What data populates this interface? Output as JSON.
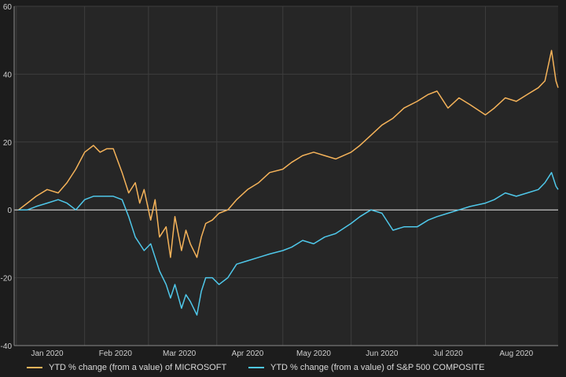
{
  "chart_data": {
    "type": "line",
    "title": "",
    "xlabel": "",
    "ylabel": "",
    "x_range": [
      "2019-12-31",
      "2020-09-03"
    ],
    "ylim": [
      -40,
      60
    ],
    "y_ticks": [
      "-40",
      "-20",
      "0",
      "20",
      "40",
      "60"
    ],
    "x_ticks": [
      {
        "label": "Jan 2020",
        "date": "2020-01-15"
      },
      {
        "label": "Feb 2020",
        "date": "2020-02-15"
      },
      {
        "label": "Mar 2020",
        "date": "2020-03-15"
      },
      {
        "label": "Apr 2020",
        "date": "2020-04-15"
      },
      {
        "label": "May 2020",
        "date": "2020-05-15"
      },
      {
        "label": "Jun 2020",
        "date": "2020-06-15"
      },
      {
        "label": "Jul 2020",
        "date": "2020-07-15"
      },
      {
        "label": "Aug 2020",
        "date": "2020-08-15"
      }
    ],
    "grid": true,
    "zero_line": true,
    "legend_position": "bottom",
    "background_color": "#262626",
    "series": [
      {
        "name": "YTD % change (from a value) of MICROSOFT",
        "color": "#f5b35a",
        "x": [
          "2020-01-02",
          "2020-01-06",
          "2020-01-10",
          "2020-01-15",
          "2020-01-20",
          "2020-01-24",
          "2020-01-28",
          "2020-02-01",
          "2020-02-05",
          "2020-02-08",
          "2020-02-11",
          "2020-02-14",
          "2020-02-18",
          "2020-02-21",
          "2020-02-24",
          "2020-02-26",
          "2020-02-28",
          "2020-03-02",
          "2020-03-04",
          "2020-03-06",
          "2020-03-09",
          "2020-03-11",
          "2020-03-13",
          "2020-03-16",
          "2020-03-18",
          "2020-03-20",
          "2020-03-23",
          "2020-03-25",
          "2020-03-27",
          "2020-03-30",
          "2020-04-02",
          "2020-04-06",
          "2020-04-10",
          "2020-04-15",
          "2020-04-20",
          "2020-04-25",
          "2020-05-01",
          "2020-05-05",
          "2020-05-10",
          "2020-05-15",
          "2020-05-20",
          "2020-05-25",
          "2020-06-01",
          "2020-06-05",
          "2020-06-10",
          "2020-06-15",
          "2020-06-20",
          "2020-06-25",
          "2020-07-01",
          "2020-07-06",
          "2020-07-10",
          "2020-07-15",
          "2020-07-20",
          "2020-07-25",
          "2020-08-01",
          "2020-08-05",
          "2020-08-10",
          "2020-08-15",
          "2020-08-20",
          "2020-08-25",
          "2020-08-28",
          "2020-08-31",
          "2020-09-02",
          "2020-09-03"
        ],
        "values": [
          0,
          2,
          4,
          6,
          5,
          8,
          12,
          17,
          19,
          17,
          18,
          18,
          11,
          5,
          8,
          2,
          6,
          -3,
          3,
          -8,
          -5,
          -14,
          -2,
          -12,
          -6,
          -10,
          -14,
          -8,
          -4,
          -3,
          -1,
          0,
          3,
          6,
          8,
          11,
          12,
          14,
          16,
          17,
          16,
          15,
          17,
          19,
          22,
          25,
          27,
          30,
          32,
          34,
          35,
          30,
          33,
          31,
          28,
          30,
          33,
          32,
          34,
          36,
          38,
          47,
          38,
          36
        ]
      },
      {
        "name": "YTD % change (from a value) of S&P 500 COMPOSITE",
        "color": "#4fc8ea",
        "x": [
          "2020-01-02",
          "2020-01-06",
          "2020-01-10",
          "2020-01-15",
          "2020-01-20",
          "2020-01-24",
          "2020-01-28",
          "2020-02-01",
          "2020-02-05",
          "2020-02-08",
          "2020-02-11",
          "2020-02-14",
          "2020-02-18",
          "2020-02-21",
          "2020-02-24",
          "2020-02-26",
          "2020-02-28",
          "2020-03-02",
          "2020-03-04",
          "2020-03-06",
          "2020-03-09",
          "2020-03-11",
          "2020-03-13",
          "2020-03-16",
          "2020-03-18",
          "2020-03-20",
          "2020-03-23",
          "2020-03-25",
          "2020-03-27",
          "2020-03-30",
          "2020-04-02",
          "2020-04-06",
          "2020-04-10",
          "2020-04-15",
          "2020-04-20",
          "2020-04-25",
          "2020-05-01",
          "2020-05-05",
          "2020-05-10",
          "2020-05-15",
          "2020-05-20",
          "2020-05-25",
          "2020-06-01",
          "2020-06-05",
          "2020-06-10",
          "2020-06-15",
          "2020-06-20",
          "2020-06-25",
          "2020-07-01",
          "2020-07-06",
          "2020-07-10",
          "2020-07-15",
          "2020-07-20",
          "2020-07-25",
          "2020-08-01",
          "2020-08-05",
          "2020-08-10",
          "2020-08-15",
          "2020-08-20",
          "2020-08-25",
          "2020-08-28",
          "2020-08-31",
          "2020-09-02",
          "2020-09-03"
        ],
        "values": [
          0,
          0,
          1,
          2,
          3,
          2,
          0,
          3,
          4,
          4,
          4,
          4,
          3,
          -2,
          -8,
          -10,
          -12,
          -10,
          -14,
          -18,
          -22,
          -26,
          -22,
          -29,
          -25,
          -27,
          -31,
          -24,
          -20,
          -20,
          -22,
          -20,
          -16,
          -15,
          -14,
          -13,
          -12,
          -11,
          -9,
          -10,
          -8,
          -7,
          -4,
          -2,
          0,
          -1,
          -6,
          -5,
          -5,
          -3,
          -2,
          -1,
          0,
          1,
          2,
          3,
          5,
          4,
          5,
          6,
          8,
          11,
          7,
          6
        ]
      }
    ]
  }
}
